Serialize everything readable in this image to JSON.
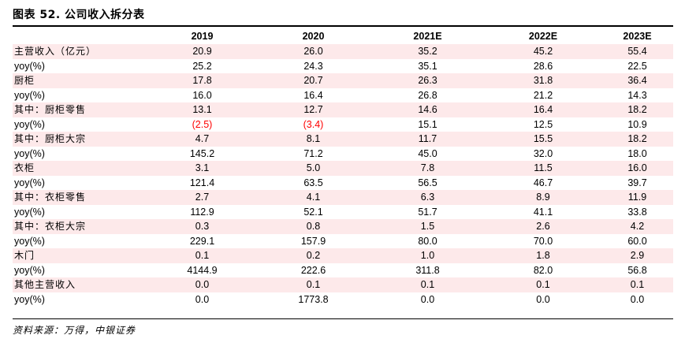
{
  "title": "图表 52. 公司收入拆分表",
  "columns": [
    "2019",
    "2020",
    "2021E",
    "2022E",
    "2023E"
  ],
  "rows": [
    {
      "label": "主营收入（亿元）",
      "cn": true,
      "values": [
        "20.9",
        "26.0",
        "35.2",
        "45.2",
        "55.4"
      ],
      "negative": [
        false,
        false,
        false,
        false,
        false
      ]
    },
    {
      "label": "yoy(%)",
      "cn": false,
      "values": [
        "25.2",
        "24.3",
        "35.1",
        "28.6",
        "22.5"
      ],
      "negative": [
        false,
        false,
        false,
        false,
        false
      ]
    },
    {
      "label": "厨柜",
      "cn": true,
      "values": [
        "17.8",
        "20.7",
        "26.3",
        "31.8",
        "36.4"
      ],
      "negative": [
        false,
        false,
        false,
        false,
        false
      ]
    },
    {
      "label": "yoy(%)",
      "cn": false,
      "values": [
        "16.0",
        "16.4",
        "26.8",
        "21.2",
        "14.3"
      ],
      "negative": [
        false,
        false,
        false,
        false,
        false
      ]
    },
    {
      "label": "其中：厨柜零售",
      "cn": true,
      "values": [
        "13.1",
        "12.7",
        "14.6",
        "16.4",
        "18.2"
      ],
      "negative": [
        false,
        false,
        false,
        false,
        false
      ]
    },
    {
      "label": "yoy(%)",
      "cn": false,
      "values": [
        "(2.5)",
        "(3.4)",
        "15.1",
        "12.5",
        "10.9"
      ],
      "negative": [
        true,
        true,
        false,
        false,
        false
      ]
    },
    {
      "label": "其中：厨柜大宗",
      "cn": true,
      "values": [
        "4.7",
        "8.1",
        "11.7",
        "15.5",
        "18.2"
      ],
      "negative": [
        false,
        false,
        false,
        false,
        false
      ]
    },
    {
      "label": "yoy(%)",
      "cn": false,
      "values": [
        "145.2",
        "71.2",
        "45.0",
        "32.0",
        "18.0"
      ],
      "negative": [
        false,
        false,
        false,
        false,
        false
      ]
    },
    {
      "label": "衣柜",
      "cn": true,
      "values": [
        "3.1",
        "5.0",
        "7.8",
        "11.5",
        "16.0"
      ],
      "negative": [
        false,
        false,
        false,
        false,
        false
      ]
    },
    {
      "label": "yoy(%)",
      "cn": false,
      "values": [
        "121.4",
        "63.5",
        "56.5",
        "46.7",
        "39.7"
      ],
      "negative": [
        false,
        false,
        false,
        false,
        false
      ]
    },
    {
      "label": "其中：衣柜零售",
      "cn": true,
      "values": [
        "2.7",
        "4.1",
        "6.3",
        "8.9",
        "11.9"
      ],
      "negative": [
        false,
        false,
        false,
        false,
        false
      ]
    },
    {
      "label": "yoy(%)",
      "cn": false,
      "values": [
        "112.9",
        "52.1",
        "51.7",
        "41.1",
        "33.8"
      ],
      "negative": [
        false,
        false,
        false,
        false,
        false
      ]
    },
    {
      "label": "其中：衣柜大宗",
      "cn": true,
      "values": [
        "0.3",
        "0.8",
        "1.5",
        "2.6",
        "4.2"
      ],
      "negative": [
        false,
        false,
        false,
        false,
        false
      ]
    },
    {
      "label": "yoy(%)",
      "cn": false,
      "values": [
        "229.1",
        "157.9",
        "80.0",
        "70.0",
        "60.0"
      ],
      "negative": [
        false,
        false,
        false,
        false,
        false
      ]
    },
    {
      "label": "木门",
      "cn": true,
      "values": [
        "0.1",
        "0.2",
        "1.0",
        "1.8",
        "2.9"
      ],
      "negative": [
        false,
        false,
        false,
        false,
        false
      ]
    },
    {
      "label": "yoy(%)",
      "cn": false,
      "values": [
        "4144.9",
        "222.6",
        "311.8",
        "82.0",
        "56.8"
      ],
      "negative": [
        false,
        false,
        false,
        false,
        false
      ]
    },
    {
      "label": "其他主营收入",
      "cn": true,
      "values": [
        "0.0",
        "0.1",
        "0.1",
        "0.1",
        "0.1"
      ],
      "negative": [
        false,
        false,
        false,
        false,
        false
      ]
    },
    {
      "label": "yoy(%)",
      "cn": false,
      "values": [
        "0.0",
        "1773.8",
        "0.0",
        "0.0",
        "0.0"
      ],
      "negative": [
        false,
        false,
        false,
        false,
        false
      ]
    }
  ],
  "source": "资料来源：万得，中银证券",
  "colors": {
    "shade": "#fde9ea",
    "negative": "#ff0000"
  }
}
